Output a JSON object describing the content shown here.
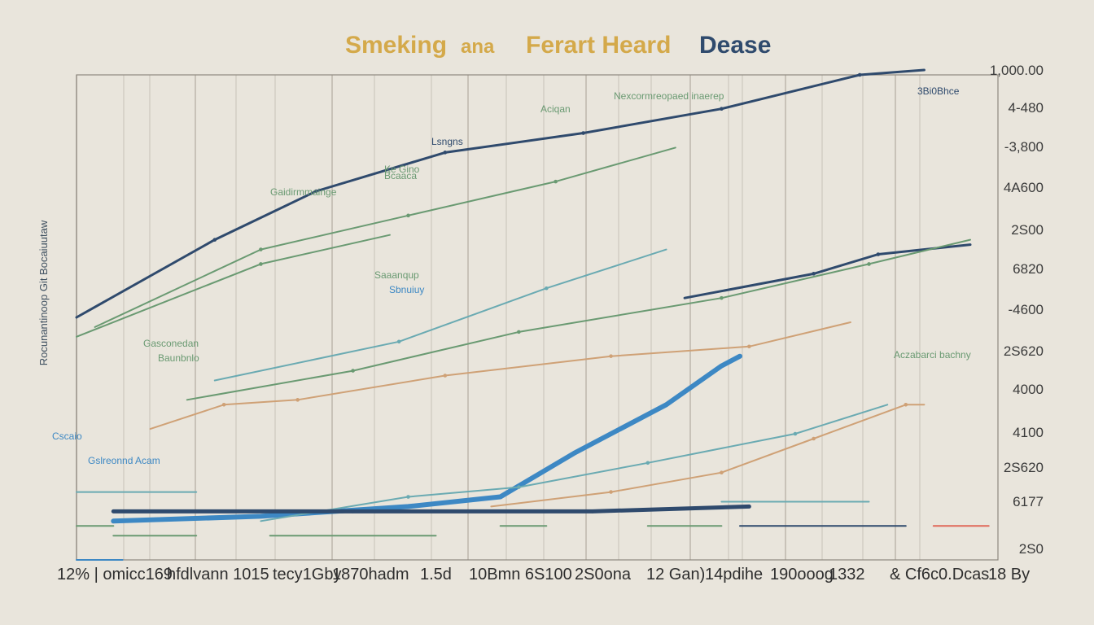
{
  "title": {
    "part1": "Smeking",
    "part2": "ana",
    "part3": "Ferart Heard",
    "part4": "Dease"
  },
  "colors": {
    "background": "#e9e5dc",
    "grid": "#b9b3a8",
    "navy": "#2f4a6d",
    "green": "#6a9a72",
    "teal": "#6aaab2",
    "tan": "#cfa176",
    "blue": "#3d88c4",
    "red": "#e0685a",
    "gold": "#d4a94a"
  },
  "chart_data": {
    "type": "line",
    "title": "Smeking ana Ferart Heard Dease",
    "ylabel": "Rocunantinoop Git Bocaiuutaw",
    "xlabel": "",
    "xlim": [
      0,
      100
    ],
    "ylim": [
      0,
      100
    ],
    "grid": true,
    "legend": "none",
    "x_tick_labels": [
      "12% | omicc169",
      "hfdlvann 1015",
      "tecy1Gby",
      "1870hadm",
      "1.5d",
      "10Bmn 6S100",
      "2S0ona",
      "12 Gan)",
      "14pdihe",
      "190ooog",
      "1332",
      "& Cf6c0.Dcas",
      "18 By"
    ],
    "y_tick_labels": [
      "1,000.00",
      "4-480",
      "-3,800",
      "4A600",
      "2S00",
      "6820",
      "-4600",
      "2S620",
      "4000",
      "4100",
      "2S620",
      "6177",
      "2S0"
    ],
    "annotations": [
      "Gaidirmmainge",
      "Ke Gino",
      "Bcaaca",
      "Lsngns",
      "Aciqan",
      "Nexcormreopaed inaerep",
      "Saaanqup",
      "Sbnuiuy",
      "Gasconedan",
      "Baunbnlo",
      "Aczabarci bachny",
      "Cscaio",
      "Gslreonnd Acam",
      "3Bi0Bhce"
    ],
    "series": [
      {
        "color": "navy",
        "x": [
          0,
          15,
          26,
          40,
          55,
          70,
          85,
          92
        ],
        "y": [
          50,
          66,
          76,
          84,
          88,
          93,
          100,
          101
        ]
      },
      {
        "color": "green",
        "x": [
          2,
          20,
          36,
          52,
          65
        ],
        "y": [
          48,
          64,
          71,
          78,
          85
        ]
      },
      {
        "color": "green",
        "x": [
          0,
          20,
          34
        ],
        "y": [
          46,
          61,
          67
        ]
      },
      {
        "color": "navy",
        "x": [
          66,
          80,
          87,
          97
        ],
        "y": [
          54,
          59,
          63,
          65
        ]
      },
      {
        "color": "green",
        "x": [
          12,
          30,
          48,
          70,
          86,
          97
        ],
        "y": [
          33,
          39,
          47,
          54,
          61,
          66
        ]
      },
      {
        "color": "teal",
        "x": [
          15,
          35,
          51,
          64
        ],
        "y": [
          37,
          45,
          56,
          64
        ]
      },
      {
        "color": "tan",
        "x": [
          8,
          16,
          24,
          40,
          58,
          73,
          84
        ],
        "y": [
          27,
          32,
          33,
          38,
          42,
          44,
          49
        ]
      },
      {
        "color": "blue",
        "x": [
          4,
          20,
          36,
          46,
          54,
          64,
          70,
          72
        ],
        "y": [
          8,
          9,
          11,
          13,
          22,
          32,
          40,
          42
        ]
      },
      {
        "color": "teal",
        "x": [
          20,
          36,
          48,
          62,
          78,
          88
        ],
        "y": [
          8,
          13,
          15,
          20,
          26,
          32
        ]
      },
      {
        "color": "tan",
        "x": [
          45,
          58,
          70,
          80,
          90,
          92
        ],
        "y": [
          11,
          14,
          18,
          25,
          32,
          32
        ]
      },
      {
        "color": "navy",
        "x": [
          4,
          30,
          56,
          73
        ],
        "y": [
          10,
          10,
          10,
          11
        ]
      },
      {
        "color": "green",
        "x": [
          0,
          4
        ],
        "y": [
          7,
          7
        ]
      },
      {
        "color": "green",
        "x": [
          4,
          13
        ],
        "y": [
          5,
          5
        ]
      },
      {
        "color": "green",
        "x": [
          21,
          39
        ],
        "y": [
          5,
          5
        ]
      },
      {
        "color": "green",
        "x": [
          46,
          51
        ],
        "y": [
          7,
          7
        ]
      },
      {
        "color": "green",
        "x": [
          62,
          70
        ],
        "y": [
          7,
          7
        ]
      },
      {
        "color": "teal",
        "x": [
          0,
          13
        ],
        "y": [
          14,
          14
        ]
      },
      {
        "color": "teal",
        "x": [
          70,
          86
        ],
        "y": [
          12,
          12
        ]
      },
      {
        "color": "navy",
        "x": [
          72,
          90
        ],
        "y": [
          7,
          7
        ]
      },
      {
        "color": "red",
        "x": [
          93,
          99
        ],
        "y": [
          7,
          7
        ]
      },
      {
        "color": "blue",
        "x": [
          0,
          5
        ],
        "y": [
          0,
          0
        ]
      }
    ]
  }
}
